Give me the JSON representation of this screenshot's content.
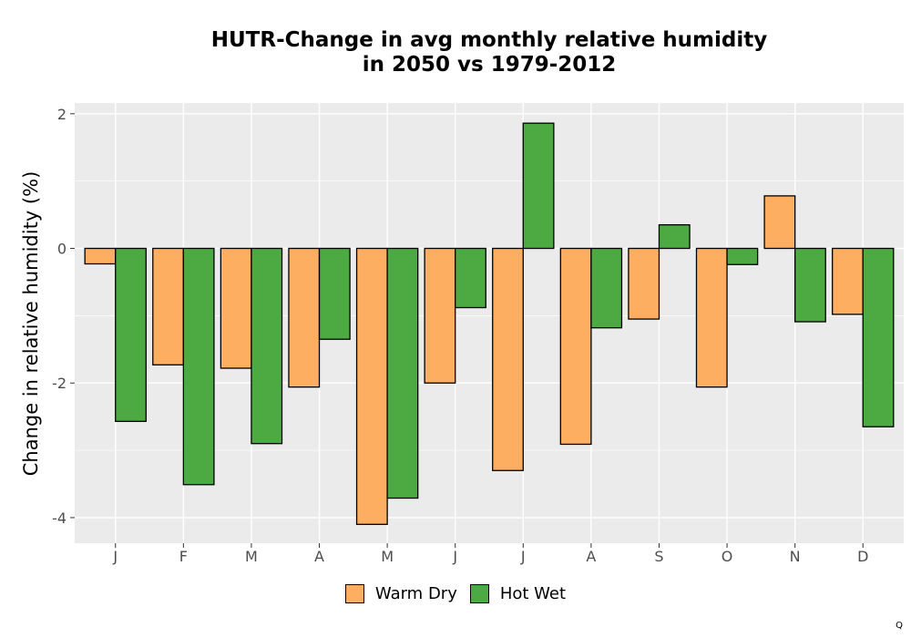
{
  "chart_data": {
    "type": "bar",
    "title": "HUTR-Change in avg monthly relative humidity\nin 2050 vs 1979-2012",
    "xlabel": "",
    "ylabel": "Change in relative humidity (%)",
    "categories": [
      "J",
      "F",
      "M",
      "A",
      "M",
      "J",
      "J",
      "A",
      "S",
      "O",
      "N",
      "D"
    ],
    "series": [
      {
        "name": "Warm Dry",
        "color": "#FDAE61",
        "values": [
          -0.23,
          -1.73,
          -1.78,
          -2.06,
          -4.1,
          -2.0,
          -3.3,
          -2.91,
          -1.05,
          -2.06,
          0.78,
          -0.98
        ]
      },
      {
        "name": "Hot Wet",
        "color": "#4DAA42",
        "values": [
          -2.57,
          -3.51,
          -2.9,
          -1.35,
          -3.71,
          -0.88,
          1.86,
          -1.18,
          0.35,
          -0.24,
          -1.09,
          -2.65
        ]
      }
    ],
    "ylim": [
      -4.38,
      2.16
    ],
    "yticks": [
      2,
      0,
      -2,
      -4
    ],
    "ytick_labels": [
      "2",
      "0",
      "-2",
      "-4"
    ],
    "grid": true,
    "legend_position": "bottom"
  },
  "corner_mark": "Q"
}
